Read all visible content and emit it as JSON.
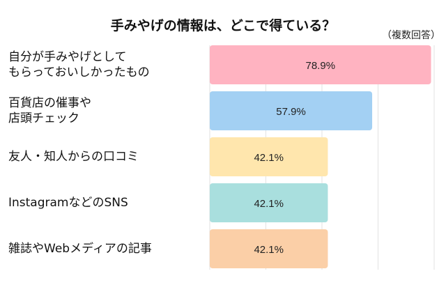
{
  "chart_data": {
    "type": "bar",
    "orientation": "horizontal",
    "title": "手みやげの情報は、どこで得ている？",
    "note": "（複数回答）",
    "categories": [
      "自分が手みやげとして\nもらっておいしかったもの",
      "百貨店の催事や\n店頭チェック",
      "友人・知人からの口コミ",
      "Instagramなどのsns",
      "雑誌やWebメディアの記事"
    ],
    "values": [
      78.9,
      57.9,
      42.1,
      42.1,
      42.1
    ],
    "data_labels": [
      "78.9%",
      "57.9%",
      "42.1%",
      "42.1%",
      "42.1%"
    ],
    "colors": [
      "#FFB3C1",
      "#A3D0F3",
      "#FFE6AD",
      "#A9DFDE",
      "#FBCFA7"
    ],
    "xlim": [
      0,
      80
    ],
    "grid": true
  }
}
